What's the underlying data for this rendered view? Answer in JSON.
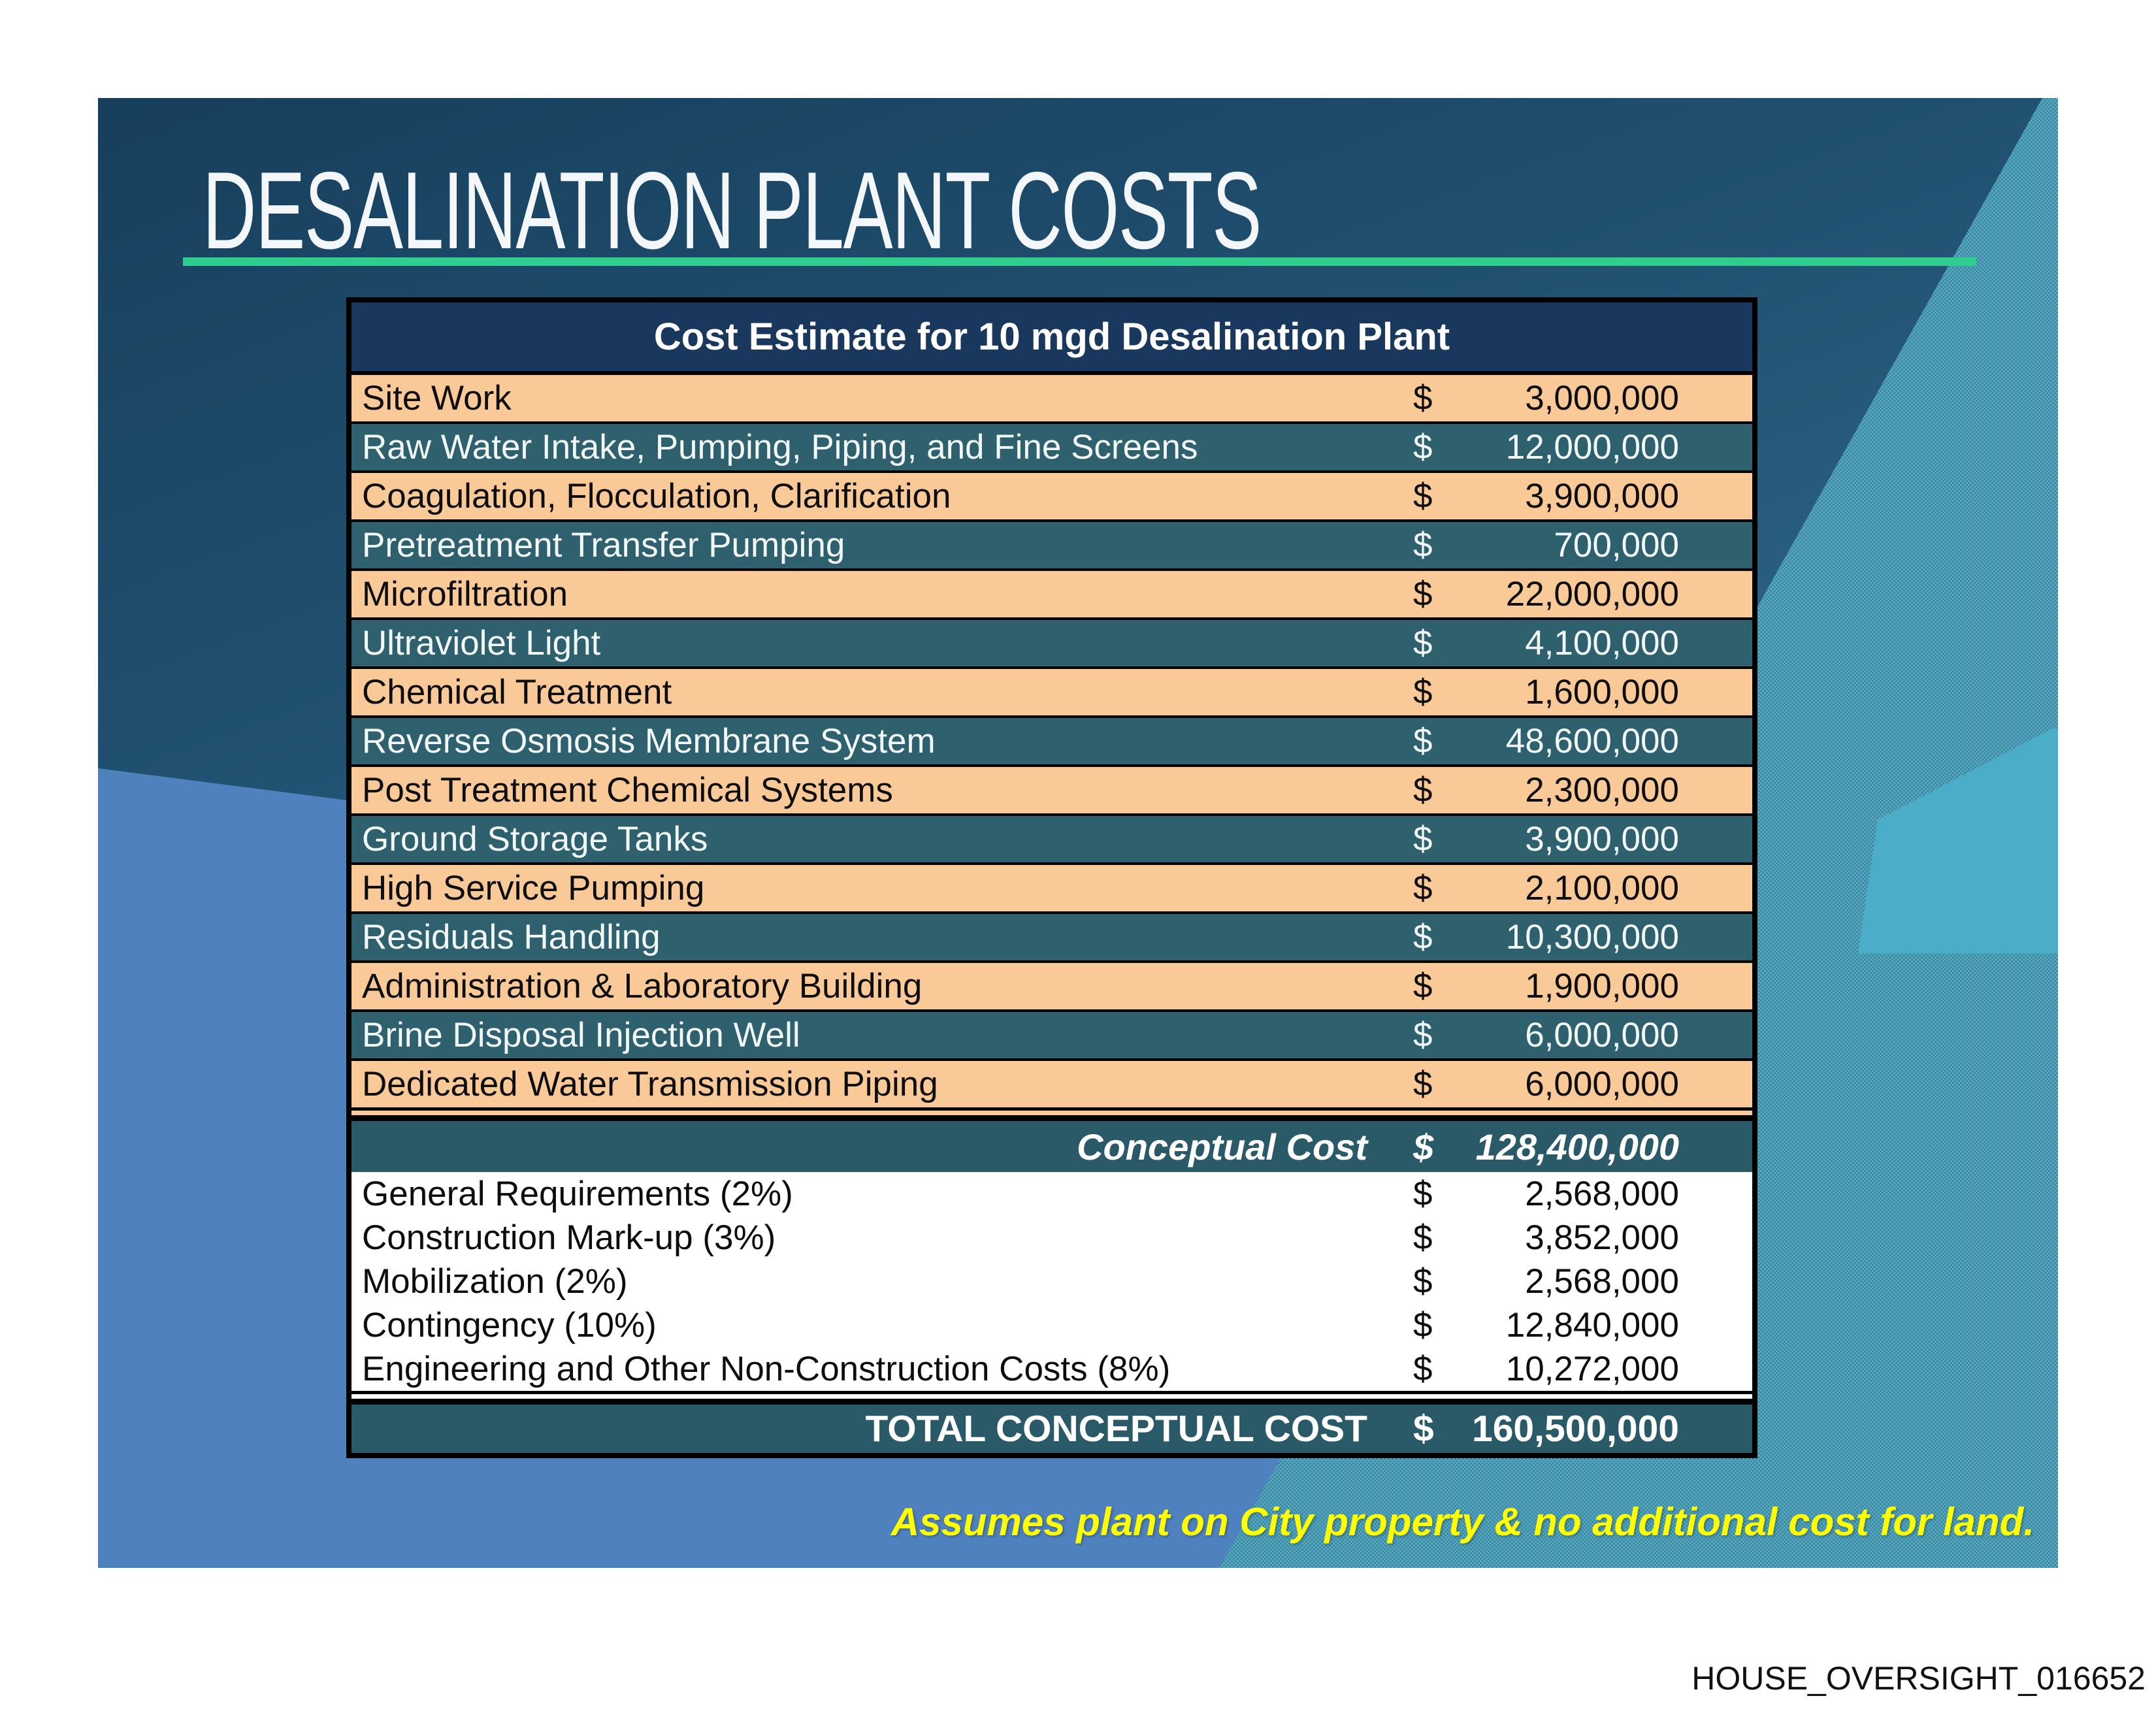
{
  "slide": {
    "title": "DESALINATION PLANT COSTS",
    "note": "Assumes plant on City property & no additional cost for land."
  },
  "table": {
    "header": "Cost Estimate for 10 mgd Desalination Plant",
    "currency": "$",
    "line_items": [
      {
        "label": "Site Work",
        "amount": "3,000,000"
      },
      {
        "label": "Raw Water Intake, Pumping, Piping, and Fine Screens",
        "amount": "12,000,000"
      },
      {
        "label": "Coagulation, Flocculation, Clarification",
        "amount": "3,900,000"
      },
      {
        "label": "Pretreatment Transfer Pumping",
        "amount": "700,000"
      },
      {
        "label": "Microfiltration",
        "amount": "22,000,000"
      },
      {
        "label": "Ultraviolet Light",
        "amount": "4,100,000"
      },
      {
        "label": "Chemical Treatment",
        "amount": "1,600,000"
      },
      {
        "label": "Reverse Osmosis Membrane System",
        "amount": "48,600,000"
      },
      {
        "label": "Post Treatment Chemical Systems",
        "amount": "2,300,000"
      },
      {
        "label": "Ground Storage Tanks",
        "amount": "3,900,000"
      },
      {
        "label": "High Service Pumping",
        "amount": "2,100,000"
      },
      {
        "label": "Residuals Handling",
        "amount": "10,300,000"
      },
      {
        "label": "Administration & Laboratory Building",
        "amount": "1,900,000"
      },
      {
        "label": "Brine Disposal Injection Well",
        "amount": "6,000,000"
      },
      {
        "label": "Dedicated Water Transmission Piping",
        "amount": "6,000,000"
      }
    ],
    "subtotal": {
      "label": "Conceptual Cost",
      "amount": "128,400,000"
    },
    "addons": [
      {
        "label": "General Requirements (2%)",
        "amount": "2,568,000"
      },
      {
        "label": "Construction Mark-up (3%)",
        "amount": "3,852,000"
      },
      {
        "label": "Mobilization (2%)",
        "amount": "2,568,000"
      },
      {
        "label": "Contingency (10%)",
        "amount": "12,840,000"
      },
      {
        "label": "Engineering and Other Non-Construction Costs (8%)",
        "amount": "10,272,000"
      }
    ],
    "total": {
      "label": "TOTAL CONCEPTUAL COST",
      "amount": "160,500,000"
    }
  },
  "footer": {
    "document_id": "HOUSE_OVERSIGHT_016652"
  },
  "colors": {
    "underline_green": "#2fcd8e",
    "note_yellow": "#ffff00",
    "row_peach": "#f9c997",
    "row_teal": "#2e606e",
    "total_teal": "#2a5a67",
    "header_navy": "#1a385e",
    "cornflower_blue": "#4e81bd",
    "notch_teal": "#4badc7",
    "band_teal": "#4496ae"
  }
}
